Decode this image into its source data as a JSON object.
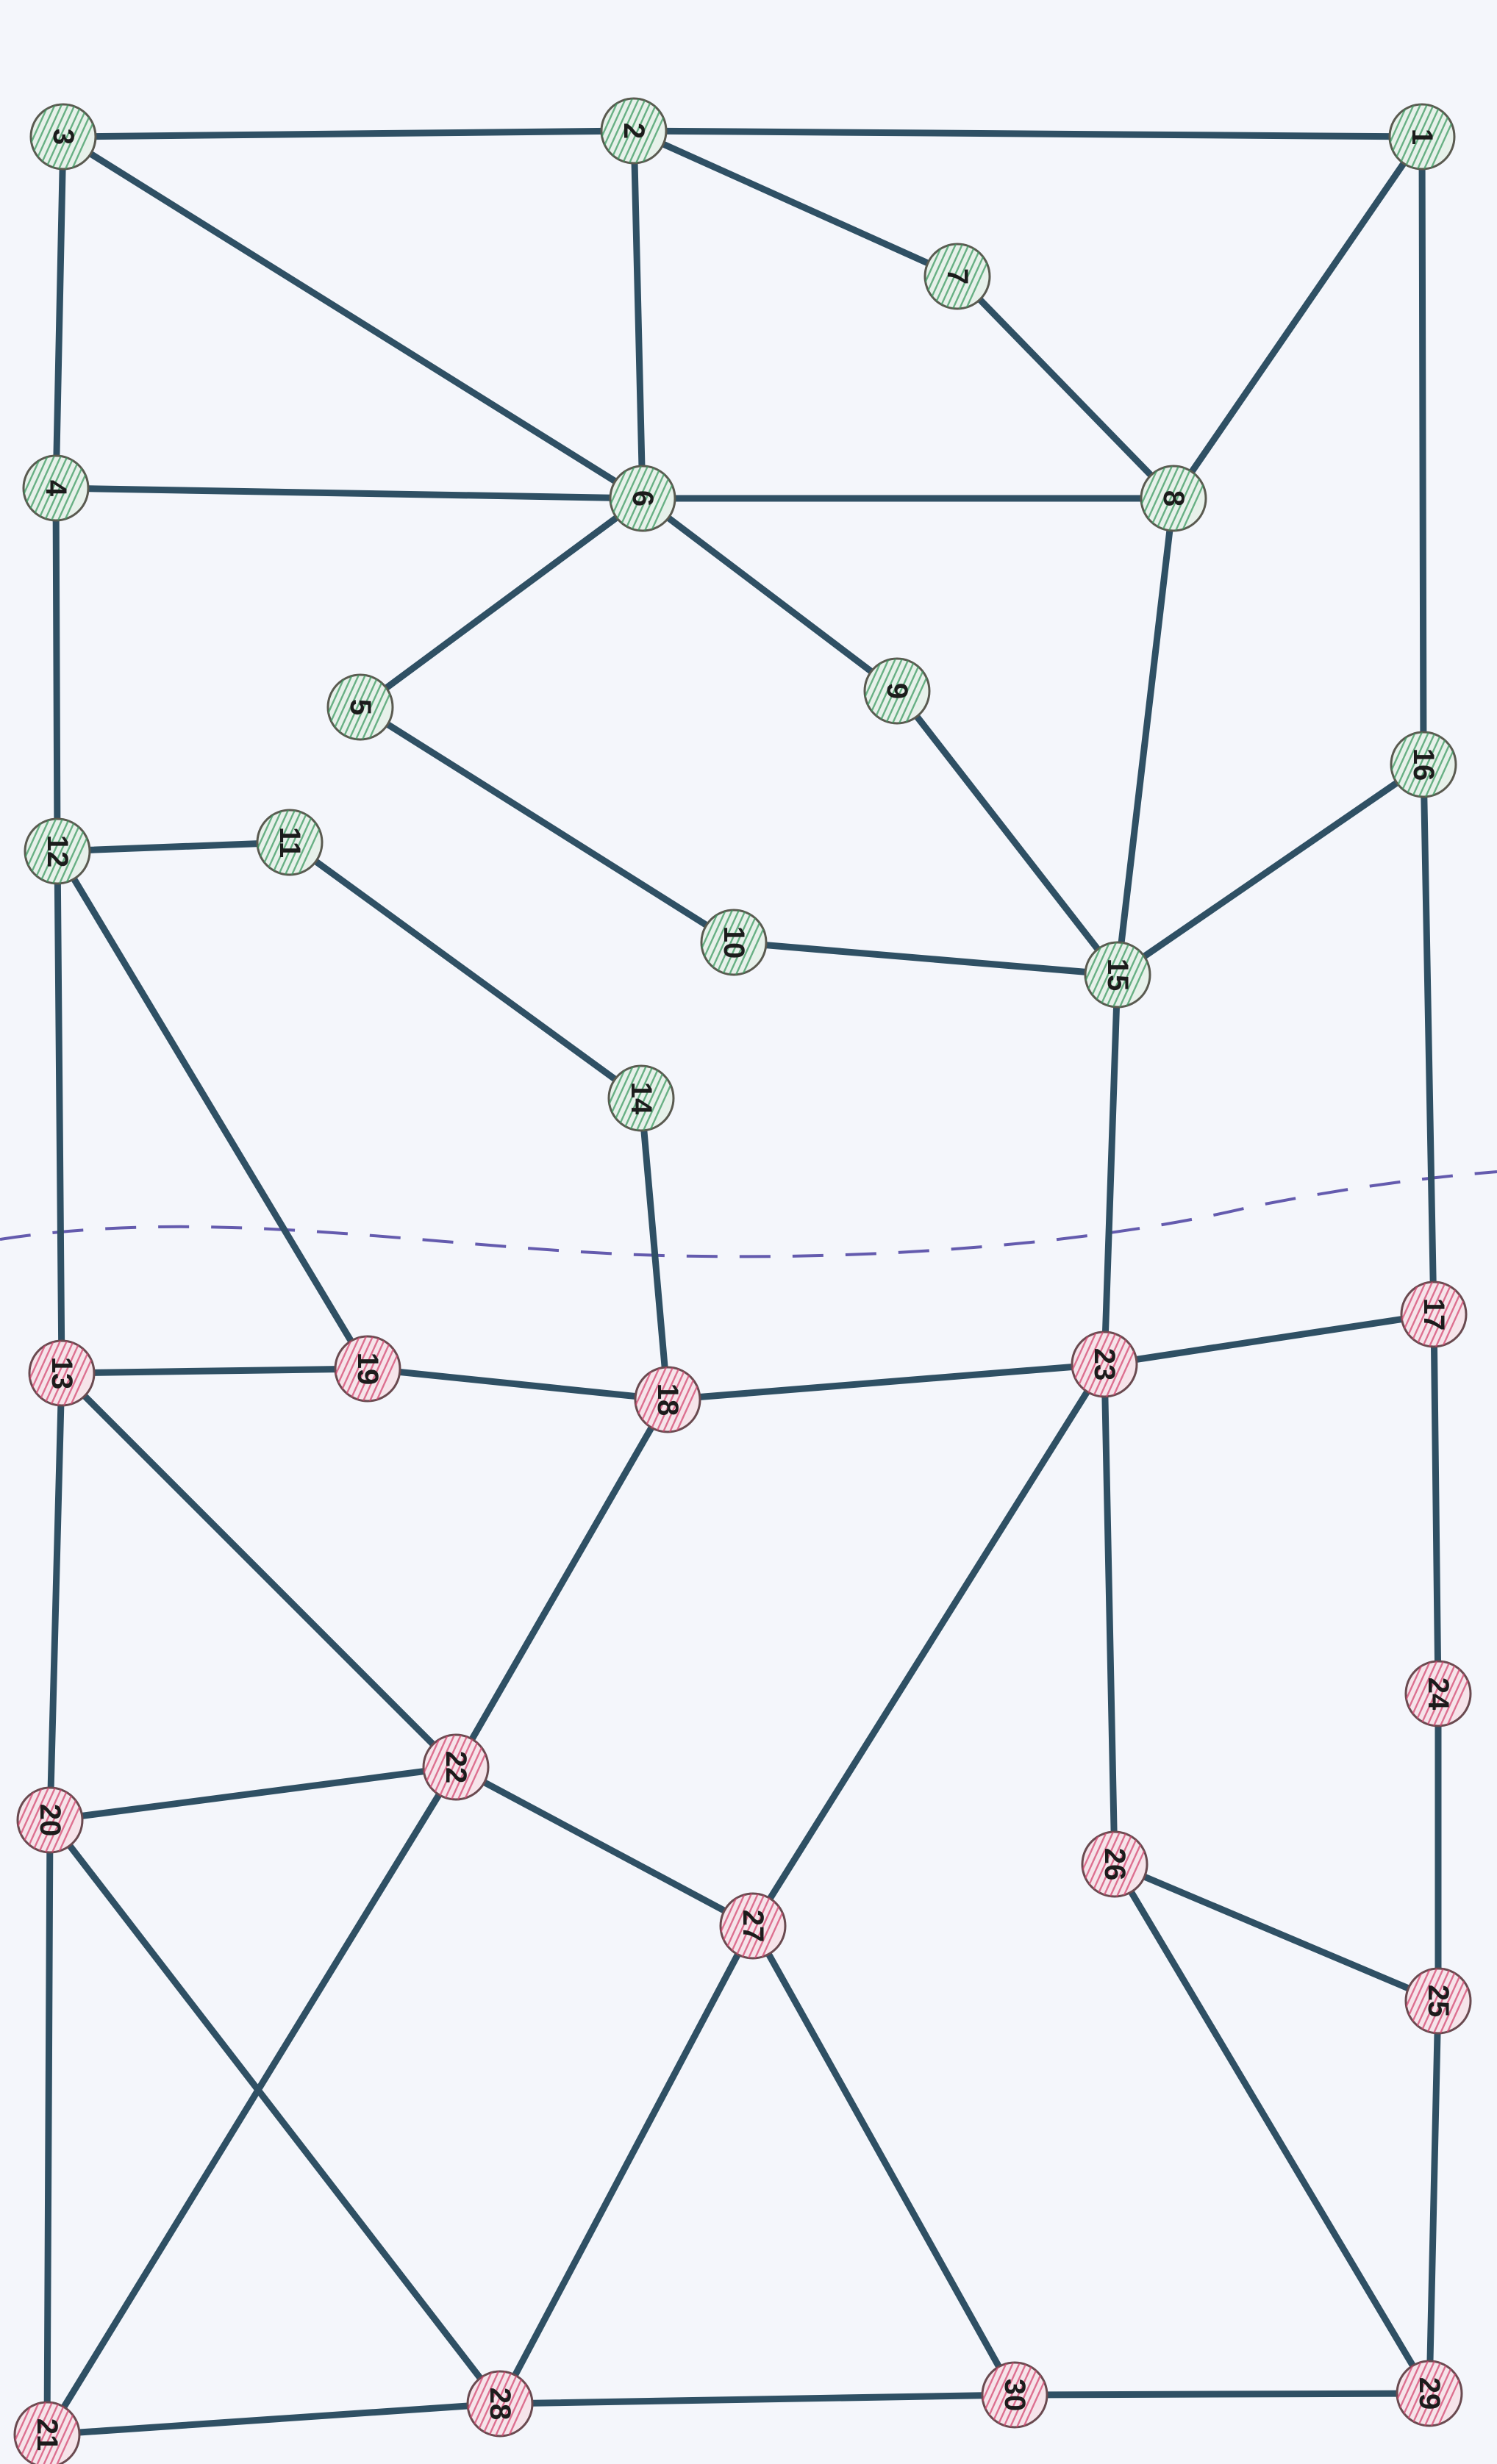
{
  "graph": {
    "nodes": [
      {
        "id": "1",
        "group": "green"
      },
      {
        "id": "2",
        "group": "green"
      },
      {
        "id": "3",
        "group": "green"
      },
      {
        "id": "4",
        "group": "green"
      },
      {
        "id": "5",
        "group": "green"
      },
      {
        "id": "6",
        "group": "green"
      },
      {
        "id": "7",
        "group": "green"
      },
      {
        "id": "8",
        "group": "green"
      },
      {
        "id": "9",
        "group": "green"
      },
      {
        "id": "10",
        "group": "green"
      },
      {
        "id": "11",
        "group": "green"
      },
      {
        "id": "12",
        "group": "green"
      },
      {
        "id": "14",
        "group": "green"
      },
      {
        "id": "15",
        "group": "green"
      },
      {
        "id": "16",
        "group": "green"
      },
      {
        "id": "13",
        "group": "red"
      },
      {
        "id": "17",
        "group": "red"
      },
      {
        "id": "18",
        "group": "red"
      },
      {
        "id": "19",
        "group": "red"
      },
      {
        "id": "20",
        "group": "red"
      },
      {
        "id": "21",
        "group": "red"
      },
      {
        "id": "22",
        "group": "red"
      },
      {
        "id": "23",
        "group": "red"
      },
      {
        "id": "24",
        "group": "red"
      },
      {
        "id": "25",
        "group": "red"
      },
      {
        "id": "26",
        "group": "red"
      },
      {
        "id": "27",
        "group": "red"
      },
      {
        "id": "28",
        "group": "red"
      },
      {
        "id": "29",
        "group": "red"
      },
      {
        "id": "30",
        "group": "red"
      }
    ],
    "edges": [
      [
        "3",
        "2"
      ],
      [
        "2",
        "1"
      ],
      [
        "3",
        "4"
      ],
      [
        "3",
        "6"
      ],
      [
        "2",
        "6"
      ],
      [
        "2",
        "7"
      ],
      [
        "7",
        "8"
      ],
      [
        "1",
        "8"
      ],
      [
        "1",
        "16"
      ],
      [
        "4",
        "6"
      ],
      [
        "6",
        "8"
      ],
      [
        "4",
        "12"
      ],
      [
        "6",
        "5"
      ],
      [
        "6",
        "9"
      ],
      [
        "5",
        "10"
      ],
      [
        "10",
        "15"
      ],
      [
        "9",
        "15"
      ],
      [
        "8",
        "15"
      ],
      [
        "16",
        "15"
      ],
      [
        "12",
        "11"
      ],
      [
        "11",
        "14"
      ],
      [
        "12",
        "13"
      ],
      [
        "12",
        "19"
      ],
      [
        "14",
        "18"
      ],
      [
        "15",
        "23"
      ],
      [
        "16",
        "17"
      ],
      [
        "13",
        "19"
      ],
      [
        "19",
        "18"
      ],
      [
        "18",
        "23"
      ],
      [
        "23",
        "17"
      ],
      [
        "13",
        "22"
      ],
      [
        "13",
        "20"
      ],
      [
        "18",
        "22"
      ],
      [
        "23",
        "27"
      ],
      [
        "23",
        "26"
      ],
      [
        "17",
        "24"
      ],
      [
        "24",
        "25"
      ],
      [
        "26",
        "25"
      ],
      [
        "20",
        "22"
      ],
      [
        "22",
        "27"
      ],
      [
        "20",
        "21"
      ],
      [
        "20",
        "28"
      ],
      [
        "22",
        "21"
      ],
      [
        "27",
        "28"
      ],
      [
        "27",
        "30"
      ],
      [
        "26",
        "29"
      ],
      [
        "25",
        "29"
      ],
      [
        "21",
        "28"
      ],
      [
        "28",
        "30"
      ],
      [
        "30",
        "29"
      ]
    ],
    "colors": {
      "green_group": "#3e9a62",
      "red_group": "#d44a72",
      "edge": "#2f5064",
      "cut_line": "#4a3fa0"
    }
  }
}
